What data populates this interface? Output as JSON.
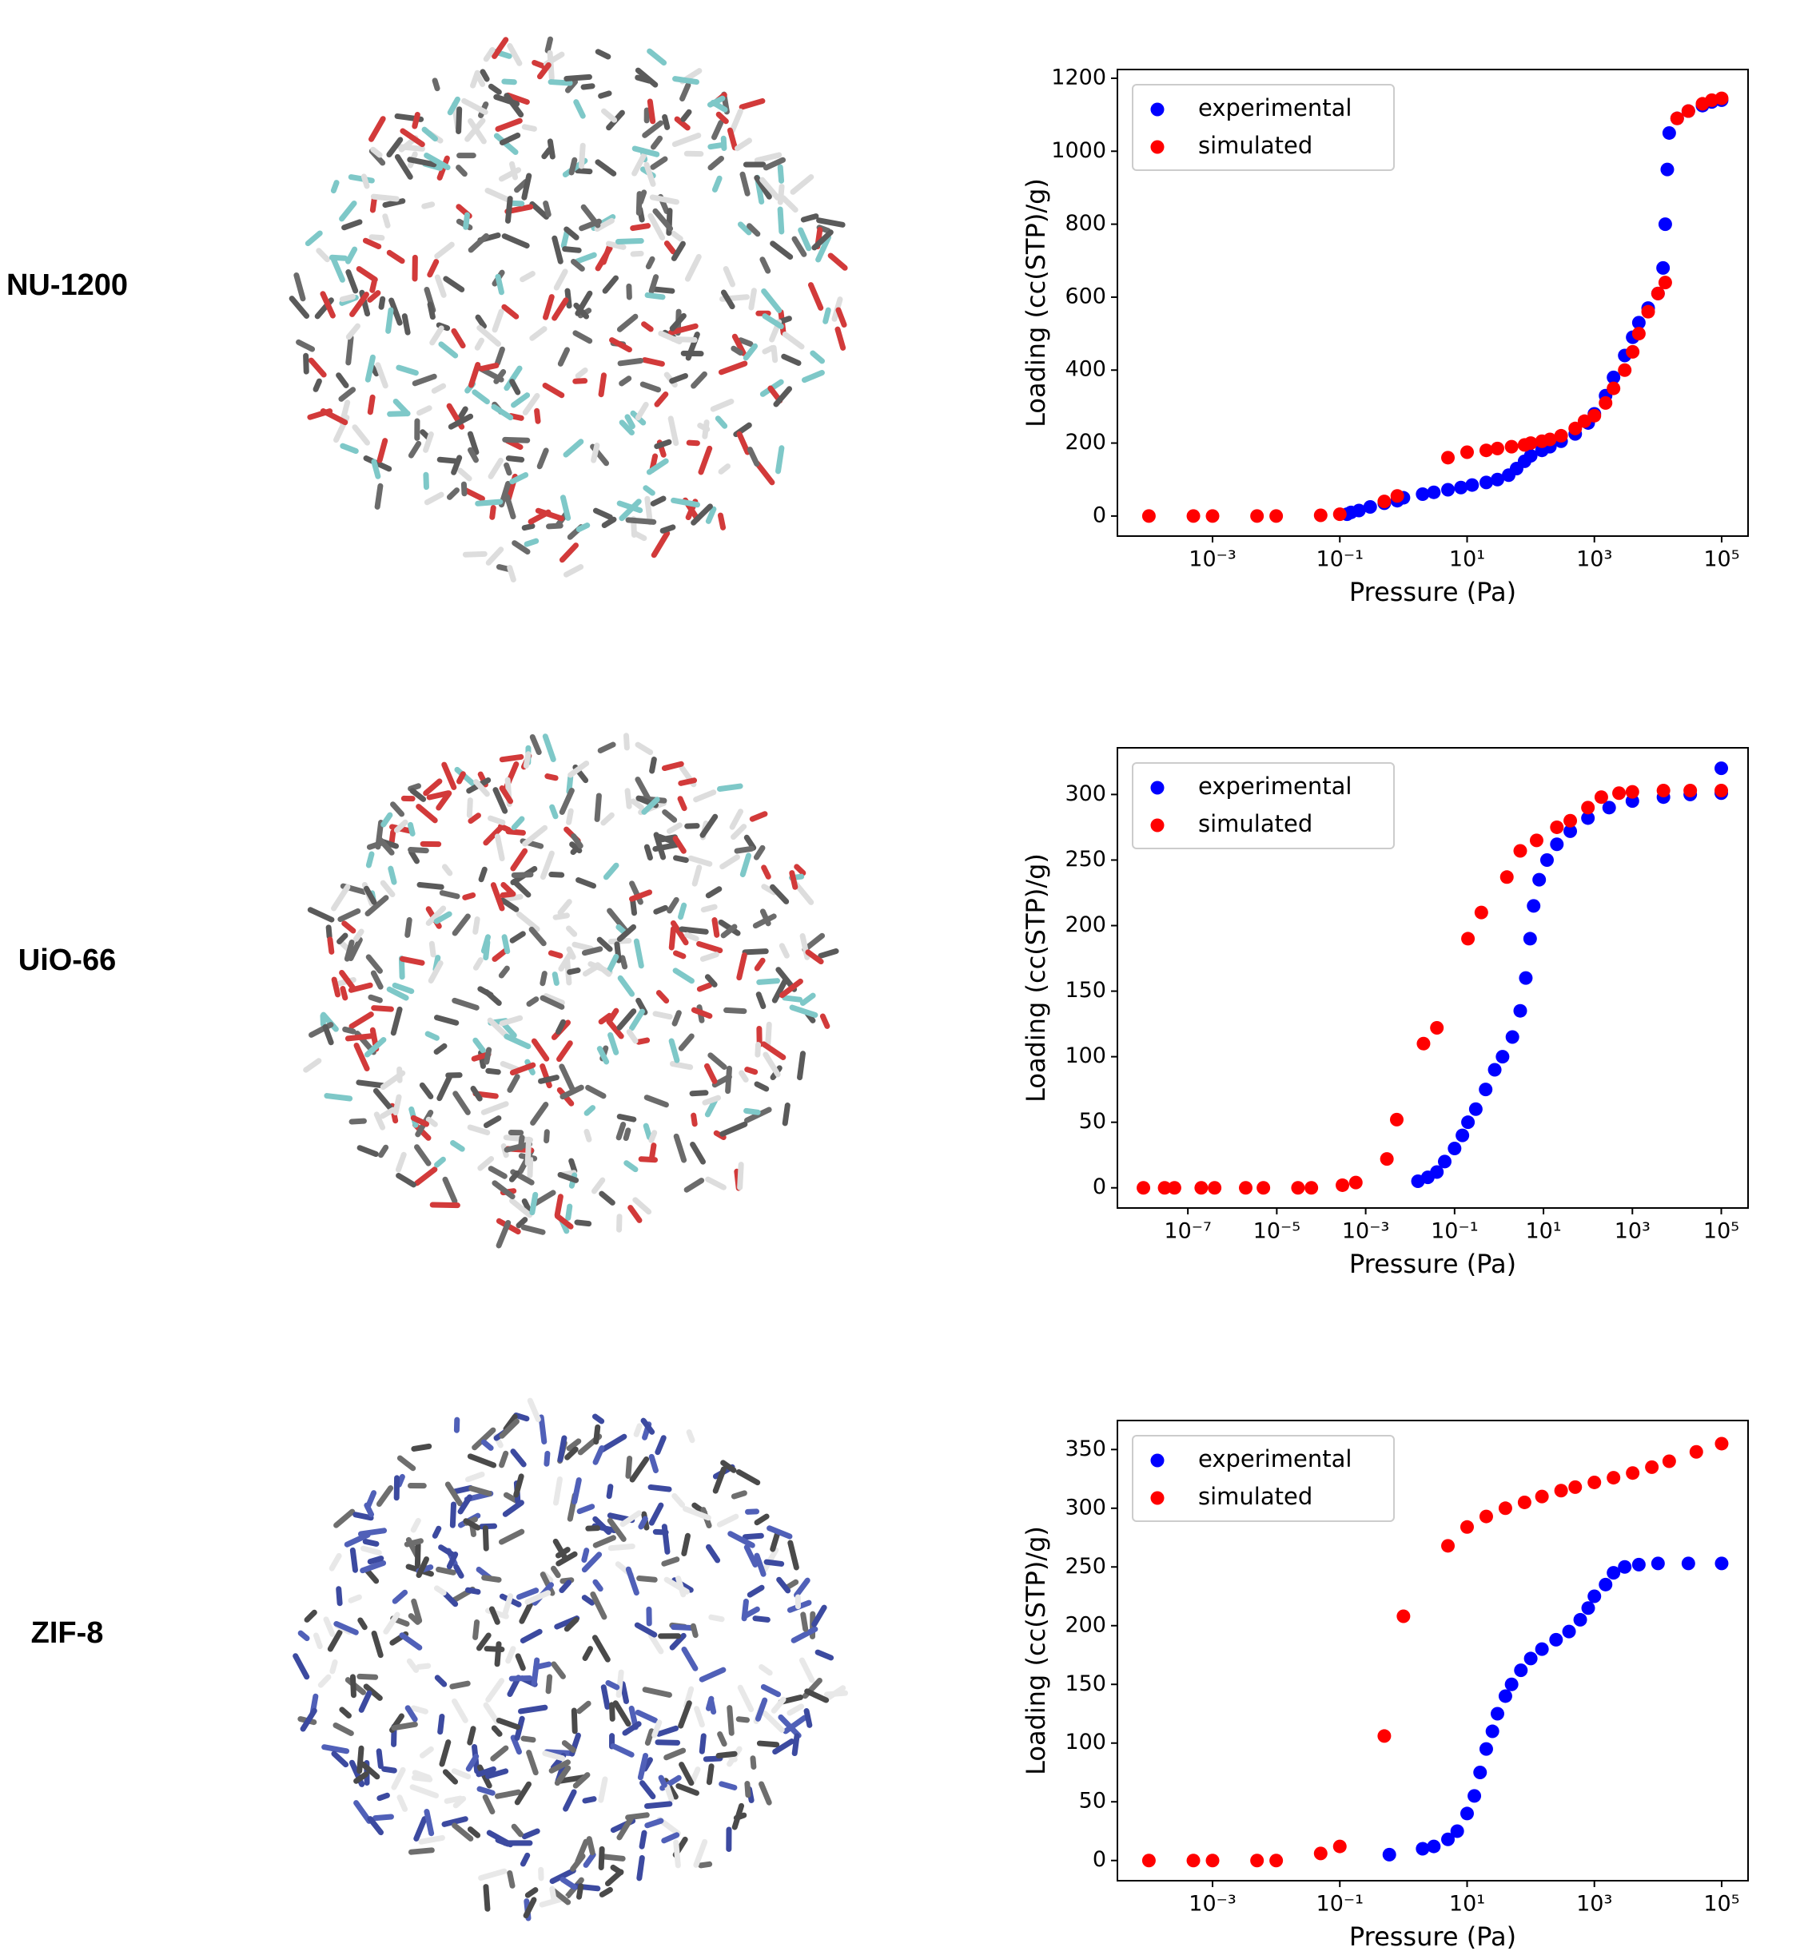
{
  "chart_data": [
    {
      "type": "scatter",
      "label": "NU-1200",
      "xlabel": "Pressure (Pa)",
      "ylabel": "Loading (cc(STP)/g)",
      "xscale": "log",
      "legend": "upper left",
      "grid": false,
      "xlim": [
        3.2e-05,
        260000
      ],
      "ylim": [
        -55,
        1224
      ],
      "xticks": [
        {
          "value": 0.001,
          "label": "10⁻³"
        },
        {
          "value": 0.1,
          "label": "10⁻¹"
        },
        {
          "value": 10,
          "label": "10¹"
        },
        {
          "value": 1000,
          "label": "10³"
        },
        {
          "value": 100000,
          "label": "10⁵"
        }
      ],
      "yticks": [
        0,
        200,
        400,
        600,
        800,
        1000,
        1200
      ],
      "series": [
        {
          "name": "experimental",
          "color": "#0000ff",
          "x": [
            0.13,
            0.15,
            0.2,
            0.3,
            0.5,
            0.8,
            1,
            2,
            3,
            5,
            8,
            12,
            20,
            30,
            45,
            60,
            80,
            100,
            150,
            200,
            300,
            500,
            800,
            1000,
            1500,
            2000,
            3000,
            4000,
            5000,
            7000,
            10000,
            12000,
            13000,
            14000,
            15000,
            20000,
            30000,
            50000,
            70000,
            100000
          ],
          "values": [
            5,
            10,
            15,
            25,
            35,
            42,
            50,
            60,
            65,
            72,
            78,
            85,
            92,
            100,
            112,
            130,
            150,
            165,
            180,
            190,
            205,
            225,
            255,
            280,
            330,
            380,
            440,
            490,
            530,
            570,
            610,
            680,
            800,
            950,
            1050,
            1090,
            1110,
            1125,
            1135,
            1140
          ]
        },
        {
          "name": "simulated",
          "color": "#ff0000",
          "x": [
            0.0001,
            0.0005,
            0.001,
            0.005,
            0.01,
            0.05,
            0.1,
            0.5,
            0.8,
            5,
            10,
            20,
            30,
            50,
            80,
            100,
            150,
            200,
            300,
            500,
            700,
            1000,
            1500,
            2000,
            3000,
            4000,
            5000,
            7000,
            10000,
            13000,
            20000,
            30000,
            50000,
            70000,
            100000
          ],
          "values": [
            0,
            0,
            0,
            0,
            0,
            2,
            5,
            40,
            55,
            160,
            175,
            180,
            185,
            190,
            195,
            200,
            205,
            210,
            220,
            240,
            260,
            275,
            310,
            350,
            400,
            450,
            500,
            560,
            610,
            640,
            1090,
            1110,
            1130,
            1140,
            1145
          ]
        }
      ]
    },
    {
      "type": "scatter",
      "label": "UiO-66",
      "xlabel": "Pressure (Pa)",
      "ylabel": "Loading (cc(STP)/g)",
      "xscale": "log",
      "legend": "upper left",
      "grid": false,
      "xlim": [
        2.6e-09,
        400000
      ],
      "ylim": [
        -15.4,
        335.6
      ],
      "xticks": [
        {
          "value": 1e-07,
          "label": "10⁻⁷"
        },
        {
          "value": 1e-05,
          "label": "10⁻⁵"
        },
        {
          "value": 0.001,
          "label": "10⁻³"
        },
        {
          "value": 0.1,
          "label": "10⁻¹"
        },
        {
          "value": 10,
          "label": "10¹"
        },
        {
          "value": 1000,
          "label": "10³"
        },
        {
          "value": 100000,
          "label": "10⁵"
        }
      ],
      "yticks": [
        0,
        50,
        100,
        150,
        200,
        250,
        300
      ],
      "series": [
        {
          "name": "experimental",
          "color": "#0000ff",
          "x": [
            0.015,
            0.025,
            0.04,
            0.06,
            0.1,
            0.15,
            0.2,
            0.3,
            0.5,
            0.8,
            1.2,
            2,
            3,
            4,
            5,
            6,
            8,
            12,
            20,
            40,
            100,
            300,
            1000,
            5000,
            20000,
            100000,
            100000
          ],
          "values": [
            5,
            8,
            12,
            20,
            30,
            40,
            50,
            60,
            75,
            90,
            100,
            115,
            135,
            160,
            190,
            215,
            235,
            250,
            262,
            272,
            282,
            290,
            295,
            298,
            300,
            301,
            320
          ]
        },
        {
          "name": "simulated",
          "color": "#ff0000",
          "x": [
            1e-08,
            3e-08,
            5e-08,
            2e-07,
            4e-07,
            2e-06,
            5e-06,
            3e-05,
            6e-05,
            0.0003,
            0.0006,
            0.003,
            0.005,
            0.02,
            0.04,
            0.2,
            0.4,
            1.5,
            3,
            7,
            20,
            40,
            100,
            200,
            500,
            1000,
            5000,
            20000,
            100000
          ],
          "values": [
            0,
            0,
            0,
            0,
            0,
            0,
            0,
            0,
            0,
            2,
            4,
            22,
            52,
            110,
            122,
            190,
            210,
            237,
            257,
            265,
            275,
            280,
            290,
            298,
            301,
            302,
            303,
            303,
            303
          ]
        }
      ]
    },
    {
      "type": "scatter",
      "label": "ZIF-8",
      "xlabel": "Pressure (Pa)",
      "ylabel": "Loading (cc(STP)/g)",
      "xscale": "log",
      "legend": "upper left",
      "grid": false,
      "xlim": [
        3.2e-05,
        260000
      ],
      "ylim": [
        -17.2,
        374.7
      ],
      "xticks": [
        {
          "value": 0.001,
          "label": "10⁻³"
        },
        {
          "value": 0.1,
          "label": "10⁻¹"
        },
        {
          "value": 10,
          "label": "10¹"
        },
        {
          "value": 1000,
          "label": "10³"
        },
        {
          "value": 100000,
          "label": "10⁵"
        }
      ],
      "yticks": [
        0,
        50,
        100,
        150,
        200,
        250,
        300,
        350
      ],
      "series": [
        {
          "name": "experimental",
          "color": "#0000ff",
          "x": [
            0.6,
            2,
            3,
            5,
            7,
            10,
            13,
            16,
            20,
            25,
            30,
            40,
            50,
            70,
            100,
            150,
            250,
            400,
            600,
            800,
            1000,
            1500,
            2000,
            3000,
            5000,
            10000,
            30000,
            100000
          ],
          "values": [
            5,
            10,
            12,
            18,
            25,
            40,
            55,
            75,
            95,
            110,
            125,
            140,
            150,
            162,
            172,
            180,
            188,
            195,
            205,
            215,
            225,
            235,
            245,
            250,
            252,
            253,
            253,
            253
          ]
        },
        {
          "name": "simulated",
          "color": "#ff0000",
          "x": [
            0.0001,
            0.0005,
            0.001,
            0.005,
            0.01,
            0.05,
            0.1,
            0.5,
            1,
            5,
            10,
            20,
            40,
            80,
            150,
            300,
            500,
            1000,
            2000,
            4000,
            8000,
            15000,
            40000,
            100000
          ],
          "values": [
            0,
            0,
            0,
            0,
            0,
            6,
            12,
            106,
            208,
            268,
            284,
            293,
            300,
            305,
            310,
            315,
            318,
            322,
            326,
            330,
            335,
            340,
            348,
            355
          ]
        }
      ]
    }
  ]
}
